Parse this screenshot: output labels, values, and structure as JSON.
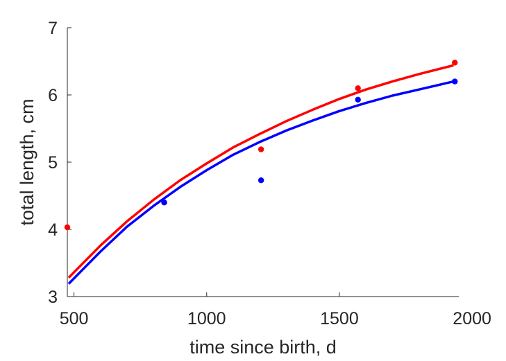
{
  "chart_data": {
    "type": "scatter",
    "title": "",
    "xlabel": "time since birth, d",
    "ylabel": "total length, cm",
    "xlim": [
      475,
      1950
    ],
    "ylim": [
      3,
      7
    ],
    "xticks": [
      500,
      1000,
      1500,
      2000
    ],
    "yticks": [
      3,
      4,
      5,
      6,
      7
    ],
    "xtick_labels": [
      "500",
      "1000",
      "1500",
      "2000"
    ],
    "ytick_labels": [
      "3",
      "4",
      "5",
      "6",
      "7"
    ],
    "grid": false,
    "legend": "none",
    "series": [
      {
        "color": "#ff0000",
        "points": [
          {
            "x": 475,
            "y": 4.03
          },
          {
            "x": 840,
            "y": 4.4
          },
          {
            "x": 1205,
            "y": 5.19
          },
          {
            "x": 1570,
            "y": 6.1
          },
          {
            "x": 1935,
            "y": 6.48
          }
        ],
        "fit": {
          "x": [
            480,
            600,
            700,
            800,
            900,
            1000,
            1100,
            1200,
            1300,
            1400,
            1500,
            1600,
            1700,
            1800,
            1930
          ],
          "y": [
            3.28,
            3.76,
            4.12,
            4.44,
            4.73,
            4.98,
            5.22,
            5.42,
            5.61,
            5.78,
            5.94,
            6.08,
            6.2,
            6.31,
            6.44
          ]
        }
      },
      {
        "color": "#0000ff",
        "points": [
          {
            "x": 840,
            "y": 4.4
          },
          {
            "x": 1205,
            "y": 4.73
          },
          {
            "x": 1570,
            "y": 5.93
          },
          {
            "x": 1935,
            "y": 6.2
          }
        ],
        "fit": {
          "x": [
            480,
            600,
            700,
            800,
            900,
            1000,
            1100,
            1200,
            1300,
            1400,
            1500,
            1600,
            1700,
            1800,
            1930
          ],
          "y": [
            3.19,
            3.67,
            4.04,
            4.35,
            4.63,
            4.88,
            5.11,
            5.3,
            5.47,
            5.62,
            5.76,
            5.88,
            5.99,
            6.08,
            6.2
          ]
        }
      }
    ]
  }
}
